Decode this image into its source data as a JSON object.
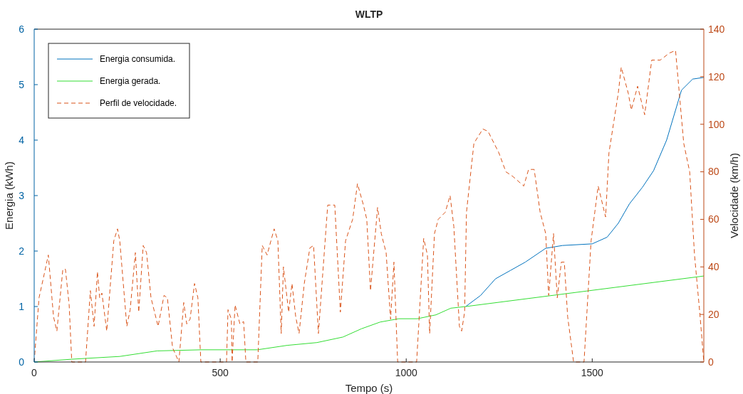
{
  "chart_data": {
    "type": "line",
    "title": "WLTP",
    "xlabel": "Tempo (s)",
    "ylabel": "Energia (kWh)",
    "y2label": "Velocidade (km/h)",
    "xlim": [
      0,
      1800
    ],
    "xticks": [
      0,
      500,
      1000,
      1500
    ],
    "ylim": [
      0,
      6
    ],
    "yticks": [
      0,
      1,
      2,
      3,
      4,
      5,
      6
    ],
    "y2lim": [
      0,
      140
    ],
    "y2ticks": [
      0,
      20,
      40,
      60,
      80,
      100,
      120,
      140
    ],
    "legend": "top left",
    "grid": false,
    "series": [
      {
        "name": "Energia consumida.",
        "color": "#0072bd",
        "line_style": "solid",
        "x": [
          1160,
          1200,
          1240,
          1280,
          1320,
          1375,
          1420,
          1500,
          1540,
          1570,
          1600,
          1635,
          1665,
          1700,
          1740,
          1770,
          1800
        ],
        "values": [
          1.0,
          1.2,
          1.5,
          1.65,
          1.8,
          2.05,
          2.1,
          2.13,
          2.25,
          2.5,
          2.85,
          3.15,
          3.45,
          4.0,
          4.9,
          5.1,
          5.13
        ]
      },
      {
        "name": "Energia gerada.",
        "color": "#33dd33",
        "line_style": "solid",
        "x": [
          0,
          100,
          230,
          330,
          450,
          600,
          680,
          760,
          830,
          880,
          930,
          980,
          1030,
          1080,
          1120,
          1160,
          1800
        ],
        "values": [
          0,
          0.05,
          0.1,
          0.2,
          0.22,
          0.22,
          0.3,
          0.35,
          0.45,
          0.6,
          0.72,
          0.78,
          0.78,
          0.85,
          0.97,
          1.0,
          1.55
        ]
      },
      {
        "name": "Perfil de velocidade.",
        "color": "#d95319",
        "line_style": "dashed",
        "axis": "y2",
        "x": [
          0,
          13,
          27,
          38,
          52,
          61,
          77,
          84,
          94,
          101,
          138,
          151,
          161,
          170,
          176,
          182,
          195,
          214,
          224,
          230,
          249,
          258,
          272,
          281,
          293,
          302,
          314,
          333,
          349,
          358,
          372,
          389,
          402,
          410,
          419,
          431,
          440,
          448,
          517,
          521,
          530,
          532,
          540,
          553,
          563,
          569,
          601,
          613,
          626,
          645,
          655,
          664,
          670,
          684,
          693,
          703,
          712,
          726,
          741,
          751,
          764,
          789,
          808,
          818,
          823,
          837,
          856,
          869,
          885,
          894,
          904,
          923,
          933,
          946,
          958,
          967,
          977,
          1028,
          1047,
          1057,
          1063,
          1076,
          1086,
          1105,
          1118,
          1128,
          1143,
          1149,
          1157,
          1162,
          1182,
          1206,
          1220,
          1249,
          1268,
          1287,
          1316,
          1329,
          1344,
          1360,
          1375,
          1383,
          1396,
          1406,
          1417,
          1425,
          1434,
          1450,
          1478,
          1497,
          1516,
          1536,
          1545,
          1570,
          1578,
          1597,
          1605,
          1622,
          1641,
          1660,
          1683,
          1708,
          1724,
          1746,
          1762,
          1775,
          1789,
          1800
        ],
        "values": [
          0,
          27,
          37,
          45,
          19,
          13,
          39,
          39,
          24,
          0,
          0,
          30,
          15,
          38,
          27,
          29,
          13,
          51,
          56,
          51,
          15,
          22,
          46,
          21,
          49,
          46,
          27,
          15,
          28,
          27,
          6,
          0,
          25,
          16,
          18,
          33,
          27,
          0,
          0,
          22,
          18,
          0,
          24,
          16,
          17,
          0,
          0,
          49,
          45,
          56,
          51,
          12,
          40,
          21,
          33,
          19,
          12,
          33,
          48,
          49,
          12,
          66,
          66,
          36,
          21,
          51,
          60,
          75,
          66,
          60,
          30,
          65,
          54,
          46,
          18,
          42,
          0,
          0,
          52,
          45,
          12,
          54,
          60,
          63,
          70,
          57,
          15,
          13,
          21,
          63,
          92,
          98,
          97,
          88,
          80,
          78,
          74,
          81,
          81,
          63,
          54,
          28,
          54,
          27,
          42,
          42,
          19,
          0,
          0,
          51,
          74,
          61,
          88,
          113,
          124,
          113,
          106,
          116,
          104,
          127,
          127,
          130,
          131,
          92,
          80,
          45,
          21,
          0
        ]
      }
    ]
  }
}
